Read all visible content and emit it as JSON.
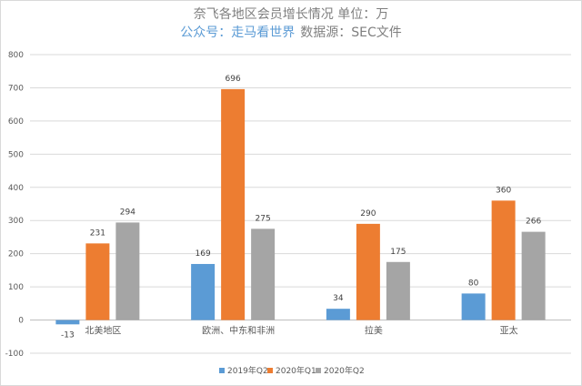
{
  "chart_data": {
    "type": "bar",
    "title": "奈飞各地区会员增长情况 单位：万",
    "subtitle_account": "公众号：走马看世界",
    "subtitle_source": "数据源：SEC文件",
    "categories": [
      "北美地区",
      "欧洲、中东和非洲",
      "拉美",
      "亚太"
    ],
    "series": [
      {
        "name": "2019年Q2",
        "values": [
          -13,
          169,
          34,
          80
        ],
        "color": "#5B9BD5"
      },
      {
        "name": "2020年Q1",
        "values": [
          231,
          696,
          290,
          360
        ],
        "color": "#ED7D31"
      },
      {
        "name": "2020年Q2",
        "values": [
          294,
          275,
          175,
          266
        ],
        "color": "#A5A5A5"
      }
    ],
    "ylim": [
      -100,
      800
    ],
    "yticks": [
      -100,
      0,
      100,
      200,
      300,
      400,
      500,
      600,
      700,
      800
    ],
    "grid": true,
    "legend": "bottom",
    "colors": {
      "title": "#7f7f7f",
      "account": "#5B9BD5",
      "grid": "#d9d9d9"
    }
  }
}
